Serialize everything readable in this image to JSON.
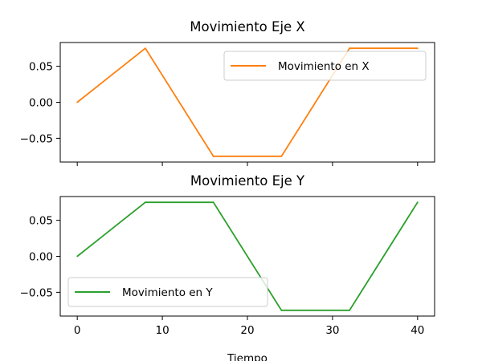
{
  "chart_data": [
    {
      "type": "line",
      "title": "Movimiento Eje X",
      "xlabel": "",
      "ylabel": "",
      "xlim": [
        -2,
        42
      ],
      "ylim": [
        -0.083,
        0.083
      ],
      "xticks": [
        0,
        10,
        20,
        30,
        40
      ],
      "show_x_tick_labels": false,
      "yticks": [
        0.05,
        0.0,
        -0.05
      ],
      "ytick_labels": [
        "0.05",
        "0.00",
        "−0.05"
      ],
      "grid": false,
      "legend": {
        "position": "upper right",
        "entries": [
          "Movimiento en X"
        ]
      },
      "series": [
        {
          "name": "Movimiento en X",
          "color": "#ff7f0e",
          "x": [
            0,
            8,
            16,
            24,
            32,
            40
          ],
          "y": [
            0.0,
            0.075,
            -0.075,
            -0.075,
            0.075,
            0.075
          ]
        }
      ]
    },
    {
      "type": "line",
      "title": "Movimiento Eje Y",
      "xlabel": "Tiempo",
      "ylabel": "",
      "xlim": [
        -2,
        42
      ],
      "ylim": [
        -0.083,
        0.083
      ],
      "xticks": [
        0,
        10,
        20,
        30,
        40
      ],
      "xtick_labels": [
        "0",
        "10",
        "20",
        "30",
        "40"
      ],
      "show_x_tick_labels": true,
      "yticks": [
        0.05,
        0.0,
        -0.05
      ],
      "ytick_labels": [
        "0.05",
        "0.00",
        "−0.05"
      ],
      "grid": false,
      "legend": {
        "position": "lower left",
        "entries": [
          "Movimiento en Y"
        ]
      },
      "series": [
        {
          "name": "Movimiento en Y",
          "color": "#2ca02c",
          "x": [
            0,
            8,
            16,
            24,
            32,
            40
          ],
          "y": [
            0.0,
            0.075,
            0.075,
            -0.075,
            -0.075,
            0.075
          ]
        }
      ]
    }
  ]
}
